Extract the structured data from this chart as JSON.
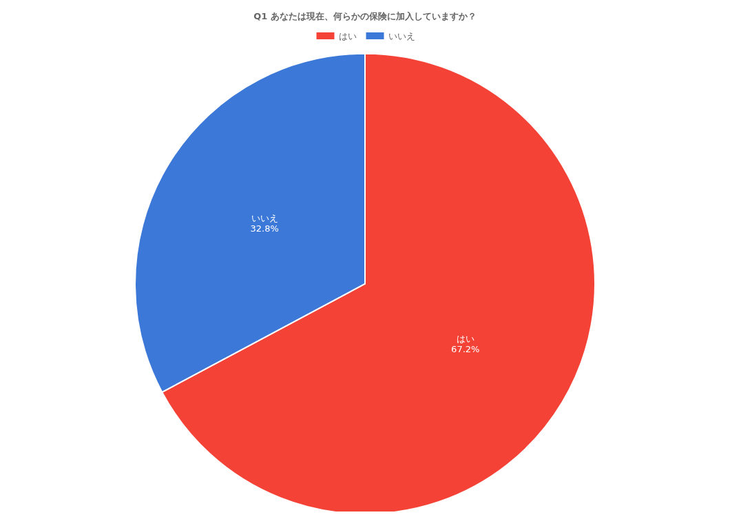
{
  "chart_data": {
    "type": "pie",
    "title": "Q1 あなたは現在、何らかの保険に加入していますか？",
    "categories": [
      "はい",
      "いいえ"
    ],
    "values": [
      67.2,
      32.8
    ],
    "colors": [
      "#f44336",
      "#3c78d8"
    ],
    "value_labels": [
      "67.2%",
      "32.8%"
    ],
    "legend": "top"
  }
}
